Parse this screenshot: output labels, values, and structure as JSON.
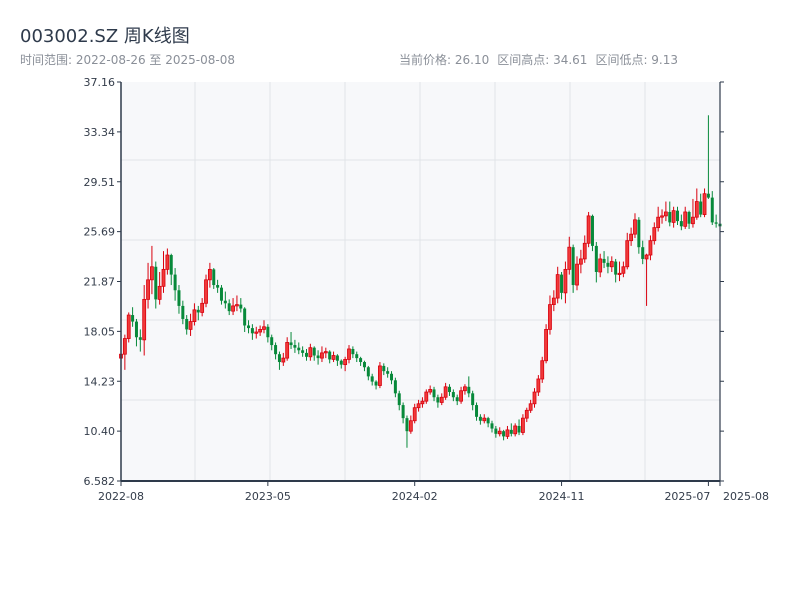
{
  "header": {
    "title": "003002.SZ 周K线图",
    "range_label": "时间范围: 2022-08-26 至 2025-08-08",
    "current_price": "当前价格: 26.10",
    "period_high": "区间高点: 34.61",
    "period_low": "区间低点: 9.13"
  },
  "colors": {
    "up": "#d9000d",
    "up_fill": "#f03a3a",
    "down": "#07893a",
    "plot_bg": "#f7f8fa",
    "axis": "#2e3a4b",
    "grid": "#e1e4e8"
  },
  "chart_data": {
    "type": "candlestick",
    "title": "003002.SZ 周K线图",
    "start_date": "2022-08-26",
    "end_date": "2025-08-08",
    "frequency": "weekly",
    "ylim": [
      6.582,
      37.16
    ],
    "y_ticks": [
      "37.16",
      "33.34",
      "29.51",
      "25.69",
      "21.87",
      "18.05",
      "14.23",
      "10.40",
      "6.582"
    ],
    "x_ticks": [
      {
        "label": "2022-08",
        "week": 0
      },
      {
        "label": "2023-05",
        "week": 38
      },
      {
        "label": "2024-02",
        "week": 76
      },
      {
        "label": "2024-11",
        "week": 114
      },
      {
        "label": "2025-07",
        "week": 152
      },
      {
        "label": "2025-08",
        "week": 155
      }
    ],
    "grid": true,
    "up_color": "red",
    "down_color": "green",
    "ohlc": [
      [
        16.0,
        17.0,
        15.6,
        16.3
      ],
      [
        16.3,
        17.8,
        15.1,
        17.5
      ],
      [
        17.5,
        19.5,
        17.2,
        19.3
      ],
      [
        19.3,
        19.9,
        18.4,
        18.8
      ],
      [
        18.8,
        19.0,
        16.9,
        17.6
      ],
      [
        17.6,
        18.2,
        16.5,
        17.4
      ],
      [
        17.4,
        21.6,
        16.2,
        20.5
      ],
      [
        20.5,
        23.3,
        19.8,
        22.0
      ],
      [
        22.0,
        24.6,
        20.9,
        23.0
      ],
      [
        23.0,
        23.4,
        19.8,
        20.5
      ],
      [
        20.5,
        22.6,
        20.1,
        21.5
      ],
      [
        21.5,
        24.2,
        21.0,
        22.8
      ],
      [
        22.8,
        24.4,
        22.4,
        23.9
      ],
      [
        23.9,
        24.0,
        21.6,
        22.4
      ],
      [
        22.4,
        22.9,
        20.4,
        21.2
      ],
      [
        21.2,
        21.6,
        19.4,
        20.0
      ],
      [
        20.0,
        20.4,
        18.6,
        19.0
      ],
      [
        19.0,
        19.3,
        17.8,
        18.2
      ],
      [
        18.2,
        19.4,
        17.7,
        18.8
      ],
      [
        18.8,
        20.2,
        18.5,
        19.7
      ],
      [
        19.7,
        20.0,
        18.9,
        19.5
      ],
      [
        19.5,
        20.6,
        19.2,
        20.2
      ],
      [
        20.2,
        22.4,
        19.9,
        22.0
      ],
      [
        22.0,
        23.3,
        21.4,
        22.8
      ],
      [
        22.8,
        22.9,
        21.3,
        21.6
      ],
      [
        21.6,
        22.0,
        21.0,
        21.4
      ],
      [
        21.4,
        21.6,
        20.1,
        20.4
      ],
      [
        20.4,
        21.1,
        19.8,
        20.2
      ],
      [
        20.2,
        20.5,
        19.3,
        19.6
      ],
      [
        19.6,
        20.6,
        19.3,
        20.0
      ],
      [
        20.0,
        20.8,
        19.6,
        20.1
      ],
      [
        20.1,
        20.6,
        19.5,
        19.8
      ],
      [
        19.8,
        19.9,
        18.0,
        18.5
      ],
      [
        18.5,
        18.9,
        17.9,
        18.3
      ],
      [
        18.3,
        18.6,
        17.4,
        17.9
      ],
      [
        17.9,
        18.4,
        17.5,
        18.0
      ],
      [
        18.0,
        18.5,
        17.7,
        18.2
      ],
      [
        18.2,
        18.9,
        17.9,
        18.4
      ],
      [
        18.4,
        18.6,
        17.2,
        17.6
      ],
      [
        17.6,
        17.8,
        16.6,
        17.0
      ],
      [
        17.0,
        17.2,
        15.9,
        16.3
      ],
      [
        16.3,
        16.5,
        15.1,
        15.7
      ],
      [
        15.7,
        16.4,
        15.4,
        16.0
      ],
      [
        16.0,
        17.6,
        15.8,
        17.2
      ],
      [
        17.2,
        18.0,
        16.7,
        17.0
      ],
      [
        17.0,
        17.4,
        16.4,
        16.8
      ],
      [
        16.8,
        17.2,
        16.3,
        16.6
      ],
      [
        16.6,
        16.9,
        16.1,
        16.4
      ],
      [
        16.4,
        16.7,
        15.8,
        16.1
      ],
      [
        16.1,
        17.1,
        15.8,
        16.8
      ],
      [
        16.8,
        16.9,
        15.8,
        16.2
      ],
      [
        16.2,
        16.6,
        15.5,
        16.0
      ],
      [
        16.0,
        16.9,
        15.7,
        16.4
      ],
      [
        16.4,
        16.8,
        16.0,
        16.5
      ],
      [
        16.5,
        16.6,
        15.6,
        15.9
      ],
      [
        15.9,
        16.5,
        15.7,
        16.2
      ],
      [
        16.2,
        16.3,
        15.4,
        15.8
      ],
      [
        15.8,
        15.9,
        15.2,
        15.5
      ],
      [
        15.5,
        16.1,
        15.0,
        15.9
      ],
      [
        15.9,
        17.0,
        15.6,
        16.7
      ],
      [
        16.7,
        16.9,
        16.0,
        16.3
      ],
      [
        16.3,
        16.5,
        15.7,
        16.0
      ],
      [
        16.0,
        16.1,
        15.4,
        15.7
      ],
      [
        15.7,
        15.8,
        15.0,
        15.3
      ],
      [
        15.3,
        15.4,
        14.3,
        14.6
      ],
      [
        14.6,
        14.8,
        13.9,
        14.2
      ],
      [
        14.2,
        14.3,
        13.6,
        13.9
      ],
      [
        13.9,
        15.7,
        13.7,
        15.4
      ],
      [
        15.4,
        15.6,
        14.7,
        15.0
      ],
      [
        15.0,
        15.3,
        14.5,
        14.8
      ],
      [
        14.8,
        15.0,
        14.0,
        14.3
      ],
      [
        14.3,
        14.5,
        13.0,
        13.3
      ],
      [
        13.3,
        13.5,
        12.0,
        12.4
      ],
      [
        12.4,
        12.6,
        11.0,
        11.4
      ],
      [
        11.4,
        11.6,
        9.13,
        10.4
      ],
      [
        10.4,
        11.6,
        10.2,
        11.2
      ],
      [
        11.2,
        12.5,
        11.0,
        12.2
      ],
      [
        12.2,
        12.8,
        11.9,
        12.5
      ],
      [
        12.5,
        13.0,
        12.2,
        12.7
      ],
      [
        12.7,
        13.6,
        12.5,
        13.4
      ],
      [
        13.4,
        13.9,
        13.2,
        13.6
      ],
      [
        13.6,
        13.8,
        12.7,
        13.0
      ],
      [
        13.0,
        13.2,
        12.2,
        12.6
      ],
      [
        12.6,
        13.3,
        12.4,
        13.0
      ],
      [
        13.0,
        14.1,
        12.8,
        13.8
      ],
      [
        13.8,
        14.0,
        13.1,
        13.4
      ],
      [
        13.4,
        13.6,
        12.7,
        13.0
      ],
      [
        13.0,
        13.2,
        12.4,
        12.7
      ],
      [
        12.7,
        13.8,
        12.5,
        13.5
      ],
      [
        13.5,
        14.0,
        13.2,
        13.8
      ],
      [
        13.8,
        14.6,
        13.0,
        13.3
      ],
      [
        13.3,
        13.5,
        12.0,
        12.4
      ],
      [
        12.4,
        12.6,
        11.2,
        11.5
      ],
      [
        11.5,
        11.7,
        10.9,
        11.2
      ],
      [
        11.2,
        11.7,
        11.0,
        11.4
      ],
      [
        11.4,
        11.5,
        10.7,
        11.0
      ],
      [
        11.0,
        11.2,
        10.3,
        10.6
      ],
      [
        10.6,
        10.8,
        9.9,
        10.2
      ],
      [
        10.2,
        10.7,
        10.0,
        10.4
      ],
      [
        10.4,
        10.5,
        9.7,
        10.0
      ],
      [
        10.0,
        10.8,
        9.8,
        10.5
      ],
      [
        10.5,
        11.0,
        10.0,
        10.2
      ],
      [
        10.2,
        11.0,
        10.0,
        10.8
      ],
      [
        10.8,
        11.3,
        10.1,
        10.3
      ],
      [
        10.3,
        11.7,
        10.1,
        11.4
      ],
      [
        11.4,
        12.2,
        11.1,
        12.0
      ],
      [
        12.0,
        12.8,
        11.8,
        12.5
      ],
      [
        12.5,
        13.7,
        12.2,
        13.4
      ],
      [
        13.4,
        14.7,
        13.1,
        14.4
      ],
      [
        14.4,
        16.1,
        14.1,
        15.8
      ],
      [
        15.8,
        18.6,
        15.6,
        18.2
      ],
      [
        18.2,
        20.8,
        17.8,
        20.1
      ],
      [
        20.1,
        21.2,
        19.6,
        20.6
      ],
      [
        20.6,
        23.0,
        20.2,
        22.4
      ],
      [
        22.4,
        22.6,
        20.5,
        21.0
      ],
      [
        21.0,
        23.4,
        20.2,
        22.8
      ],
      [
        22.8,
        25.3,
        22.4,
        24.5
      ],
      [
        24.5,
        24.7,
        21.0,
        21.6
      ],
      [
        21.6,
        23.8,
        21.2,
        23.2
      ],
      [
        23.2,
        24.3,
        22.5,
        23.6
      ],
      [
        23.6,
        25.4,
        23.3,
        24.8
      ],
      [
        24.8,
        27.2,
        24.5,
        26.9
      ],
      [
        26.9,
        27.0,
        24.2,
        24.6
      ],
      [
        24.6,
        24.9,
        21.8,
        22.6
      ],
      [
        22.6,
        24.0,
        22.2,
        23.6
      ],
      [
        23.6,
        24.2,
        22.9,
        23.3
      ],
      [
        23.3,
        23.8,
        22.5,
        23.0
      ],
      [
        23.0,
        23.8,
        22.6,
        23.4
      ],
      [
        23.4,
        23.6,
        21.8,
        22.4
      ],
      [
        22.4,
        23.4,
        21.9,
        22.5
      ],
      [
        22.5,
        23.4,
        22.2,
        23.0
      ],
      [
        23.0,
        25.6,
        22.8,
        25.0
      ],
      [
        25.0,
        26.0,
        24.6,
        25.5
      ],
      [
        25.5,
        27.1,
        25.2,
        26.6
      ],
      [
        26.6,
        26.8,
        24.0,
        24.5
      ],
      [
        24.5,
        25.0,
        23.2,
        23.6
      ],
      [
        23.6,
        24.0,
        20.0,
        23.9
      ],
      [
        23.9,
        25.4,
        23.5,
        25.0
      ],
      [
        25.0,
        26.4,
        24.7,
        26.0
      ],
      [
        26.0,
        27.6,
        25.7,
        26.8
      ],
      [
        26.8,
        27.4,
        26.3,
        26.9
      ],
      [
        26.9,
        28.0,
        26.5,
        27.2
      ],
      [
        27.2,
        28.0,
        26.1,
        26.4
      ],
      [
        26.4,
        27.6,
        26.0,
        27.3
      ],
      [
        27.3,
        27.6,
        26.2,
        26.5
      ],
      [
        26.5,
        27.0,
        25.8,
        26.1
      ],
      [
        26.1,
        27.6,
        25.9,
        27.2
      ],
      [
        27.2,
        27.3,
        25.9,
        26.3
      ],
      [
        26.3,
        28.2,
        26.0,
        26.8
      ],
      [
        26.8,
        29.0,
        26.6,
        28.0
      ],
      [
        28.0,
        28.6,
        26.8,
        27.0
      ],
      [
        27.0,
        29.0,
        26.8,
        28.6
      ],
      [
        28.6,
        34.61,
        28.2,
        28.3
      ],
      [
        28.3,
        28.8,
        26.2,
        26.4
      ],
      [
        26.4,
        27.0,
        26.0,
        26.3
      ],
      [
        26.3,
        26.6,
        25.8,
        26.1
      ]
    ]
  }
}
